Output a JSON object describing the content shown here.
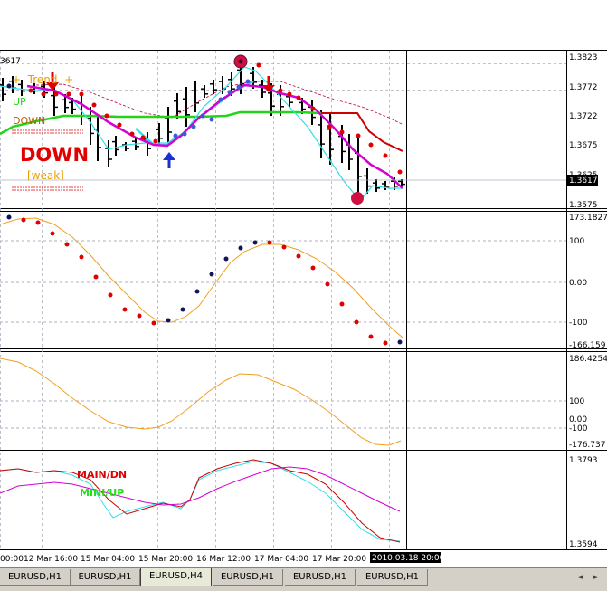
{
  "colors": {
    "background": "#ffffff",
    "grid": "#a9b0c0",
    "bar": "#000000",
    "cyan": "#33dfe8",
    "magenta": "#d400d4",
    "green": "#22d41a",
    "red": "#cc0000",
    "orange": "#f0a020",
    "navy": "#14145a",
    "blue_arrow": "#1a2fd4",
    "text_orange": "#e8a000",
    "main_dn_color": "#e00000",
    "mini_up_color": "#22e01a"
  },
  "main_panel": {
    "corner_price": "3617",
    "trend_label": "+  Trend  +",
    "up_label": "UP",
    "down_small_label": "DOWN",
    "down_big_label": "DOWN",
    "weak_label": "[weak]",
    "scale": [
      "1.3823",
      "1.3772",
      "1.3722",
      "1.3675",
      "1.3625",
      "1.3575"
    ],
    "current_price": "1.3617"
  },
  "cci_panel": {
    "scale": [
      "173.1827",
      "100",
      "0.00",
      "-100",
      "-166.159"
    ]
  },
  "osc_panel": {
    "scale": [
      "186.4254",
      "100",
      "0.00",
      "-100",
      "-176.737"
    ]
  },
  "ma_panel": {
    "main_dn_label": "MAIN/DN",
    "mini_up_label": "MINI/UP",
    "scale": [
      "1.3793",
      "1.3594"
    ]
  },
  "time_axis": {
    "labels": [
      "00:00",
      "12 Mar 16:00",
      "15 Mar 04:00",
      "15 Mar 20:00",
      "16 Mar 12:00",
      "17 Mar 04:00",
      "17 Mar 20:00"
    ],
    "current_time": "2010.03.18 20:00"
  },
  "tabs": [
    {
      "label": "EURUSD,H1"
    },
    {
      "label": "EURUSD,H1"
    },
    {
      "label": "EURUSD,H4"
    },
    {
      "label": "EURUSD,H1"
    },
    {
      "label": "EURUSD,H1"
    },
    {
      "label": "EURUSD,H1"
    }
  ],
  "active_tab_index": 2,
  "nav": {
    "left": "◄",
    "right": "►"
  }
}
